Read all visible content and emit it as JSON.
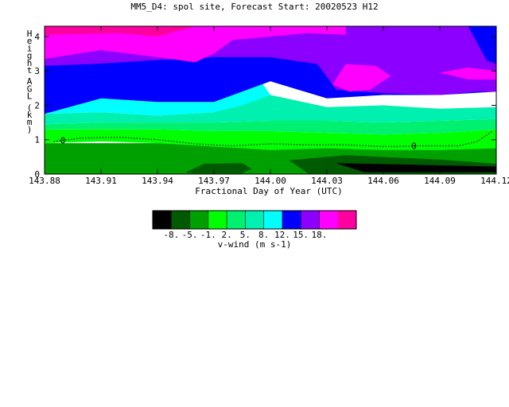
{
  "chart_data": {
    "type": "heatmap",
    "title": "MM5_D4: spol site,  Forecast Start: 20020523 H12",
    "xlabel": "Fractional Day of Year (UTC)",
    "ylabel": "Height AGL (km)",
    "xlim": [
      143.88,
      144.12
    ],
    "ylim": [
      0,
      4.3
    ],
    "x_ticks": [
      143.88,
      143.91,
      143.94,
      143.97,
      144.0,
      144.03,
      144.06,
      144.09,
      144.12
    ],
    "x_tick_labels": [
      "143.88",
      "143.91",
      "143.94",
      "143.97",
      "144.00",
      "144.03",
      "144.06",
      "144.09",
      "144.12"
    ],
    "y_ticks": [
      0,
      1,
      2,
      3,
      4
    ],
    "y_tick_labels": [
      "0",
      "1",
      "2",
      "3",
      "4"
    ],
    "contour_label": "0",
    "zero_contour": {
      "x": [
        143.885,
        143.9,
        143.92,
        143.94,
        143.96,
        143.98,
        144.0,
        144.02,
        144.04,
        144.06,
        144.08,
        144.1,
        144.11,
        144.118
      ],
      "y": [
        0.95,
        1.05,
        1.07,
        1.0,
        0.88,
        0.82,
        0.88,
        0.85,
        0.85,
        0.8,
        0.82,
        0.82,
        0.95,
        1.25
      ]
    },
    "legend": {
      "label": "v-wind (m s-1)",
      "tick_labels": [
        "-8.",
        "-5.",
        "-1.",
        "2.",
        "5.",
        "8.",
        "12.",
        "15.",
        "18."
      ],
      "colors": [
        "#000000",
        "#005a00",
        "#00a000",
        "#00ff00",
        "#00f070",
        "#00f0b0",
        "#00ffff",
        "#0000ff",
        "#8c00ff",
        "#ff00ff",
        "#ff00a0"
      ]
    },
    "regions": [
      {
        "value": "-5 to -1",
        "color": "#00a000",
        "x": [
          143.88,
          144.12,
          144.12,
          143.88
        ],
        "y": [
          0,
          0,
          0.9,
          0.9
        ]
      },
      {
        "value": "-8 to -5",
        "color": "#005a00",
        "x": [
          143.955,
          143.965,
          143.985,
          143.99,
          143.985,
          143.96
        ],
        "y": [
          0.05,
          0.3,
          0.32,
          0.15,
          0.02,
          0.02
        ]
      },
      {
        "value": "-8 to -5",
        "color": "#005a00",
        "x": [
          144.01,
          144.04,
          144.09,
          144.12,
          144.12,
          144.06,
          144.02
        ],
        "y": [
          0.4,
          0.55,
          0.42,
          0.3,
          0.02,
          0.02,
          0.02
        ]
      },
      {
        "value": "< -8",
        "color": "#000000",
        "x": [
          144.035,
          144.07,
          144.12,
          144.12,
          144.05
        ],
        "y": [
          0.32,
          0.28,
          0.22,
          0.05,
          0.05
        ]
      },
      {
        "value": "-1 to 2",
        "color": "#00ff00",
        "x": [
          143.88,
          143.91,
          143.94,
          143.97,
          144.0,
          144.03,
          144.06,
          144.09,
          144.12,
          144.12,
          144.09,
          144.06,
          144.03,
          144.0,
          143.97,
          143.94,
          143.91,
          143.88
        ],
        "y": [
          0.9,
          0.95,
          0.9,
          0.8,
          0.7,
          0.75,
          0.7,
          0.7,
          0.75,
          1.3,
          1.2,
          1.15,
          1.2,
          1.25,
          1.25,
          1.3,
          1.3,
          1.3
        ]
      },
      {
        "value": "2 to 5",
        "color": "#00f070",
        "x": [
          143.88,
          143.91,
          143.94,
          143.97,
          144.0,
          144.03,
          144.06,
          144.09,
          144.12,
          144.12,
          144.09,
          144.06,
          144.03,
          144.0,
          143.97,
          143.94,
          143.91,
          143.88
        ],
        "y": [
          1.3,
          1.3,
          1.3,
          1.25,
          1.25,
          1.2,
          1.15,
          1.2,
          1.3,
          1.6,
          1.55,
          1.5,
          1.55,
          1.55,
          1.5,
          1.5,
          1.5,
          1.45
        ]
      },
      {
        "value": "5 to 8",
        "color": "#00f0b0",
        "x": [
          143.88,
          143.91,
          143.94,
          143.97,
          144.0,
          144.03,
          144.06,
          144.09,
          144.12,
          144.12,
          144.09,
          144.06,
          144.03,
          144.0,
          143.97,
          143.94,
          143.91,
          143.88
        ],
        "y": [
          1.45,
          1.5,
          1.5,
          1.5,
          1.55,
          1.55,
          1.5,
          1.55,
          1.6,
          1.95,
          1.9,
          2.0,
          1.95,
          2.3,
          1.8,
          1.7,
          1.8,
          1.75
        ]
      },
      {
        "value": "8 to 12",
        "color": "#00ffff",
        "x": [
          143.88,
          143.91,
          143.94,
          143.97,
          143.985,
          144.0,
          144.03,
          144.06,
          144.09,
          144.12,
          144.12,
          144.09,
          144.06,
          144.03,
          144.0,
          143.995,
          143.985,
          143.97,
          143.94,
          143.91,
          143.88
        ],
        "y": [
          1.75,
          1.8,
          1.7,
          1.8,
          2.0,
          2.3,
          1.95,
          2.0,
          1.9,
          1.95,
          1.95,
          1.9,
          2.0,
          1.95,
          2.3,
          2.7,
          3.1,
          2.1,
          2.1,
          2.2,
          1.75
        ]
      },
      {
        "value": "8 to 12",
        "color": "#0000ff",
        "x": [
          143.88,
          143.91,
          143.94,
          143.97,
          144.0,
          144.03,
          144.06,
          144.09,
          144.12,
          144.12,
          144.09,
          144.06,
          144.03,
          144.0,
          143.97,
          143.94,
          143.91,
          143.88
        ],
        "y": [
          1.75,
          2.2,
          2.1,
          2.1,
          2.7,
          2.2,
          2.3,
          2.3,
          2.4,
          4.3,
          4.3,
          4.3,
          4.3,
          4.3,
          4.3,
          4.3,
          4.3,
          4.3
        ]
      },
      {
        "value": "12 to 15",
        "color": "#8c00ff",
        "x": [
          143.88,
          143.905,
          143.935,
          143.97,
          144.0,
          144.025,
          144.035,
          144.06,
          144.09,
          144.11,
          144.12,
          144.12,
          143.88
        ],
        "y": [
          3.15,
          3.2,
          3.3,
          3.4,
          3.4,
          3.2,
          2.45,
          2.35,
          2.3,
          2.4,
          2.4,
          4.3,
          4.3
        ]
      },
      {
        "value": "8 to 12",
        "color": "#0000ff",
        "x": [
          144.105,
          144.115,
          144.12,
          144.12,
          144.1
        ],
        "y": [
          4.3,
          3.3,
          3.2,
          4.3,
          4.3
        ]
      },
      {
        "value": "15 to 18",
        "color": "#ff00ff",
        "x": [
          143.88,
          143.91,
          143.94,
          143.96,
          143.97,
          143.98,
          144.0,
          144.02,
          144.04,
          144.04,
          143.88
        ],
        "y": [
          3.35,
          3.6,
          3.4,
          3.25,
          3.5,
          3.9,
          4.0,
          4.1,
          4.05,
          4.3,
          4.3
        ]
      },
      {
        "value": "15 to 18",
        "color": "#ff00ff",
        "x": [
          144.033,
          144.042,
          144.053,
          144.064,
          144.056,
          144.04
        ],
        "y": [
          2.6,
          2.4,
          2.45,
          2.85,
          3.15,
          3.2
        ]
      },
      {
        "value": "15 to 18",
        "color": "#ff00ff",
        "x": [
          144.09,
          144.105,
          144.12,
          144.12,
          144.105
        ],
        "y": [
          2.95,
          2.75,
          2.75,
          3.0,
          3.1
        ]
      },
      {
        "value": "> 18",
        "color": "#ff00a0",
        "x": [
          143.88,
          143.92,
          143.94,
          143.96,
          143.88
        ],
        "y": [
          4.05,
          4.1,
          4.0,
          4.3,
          4.3
        ]
      }
    ]
  }
}
